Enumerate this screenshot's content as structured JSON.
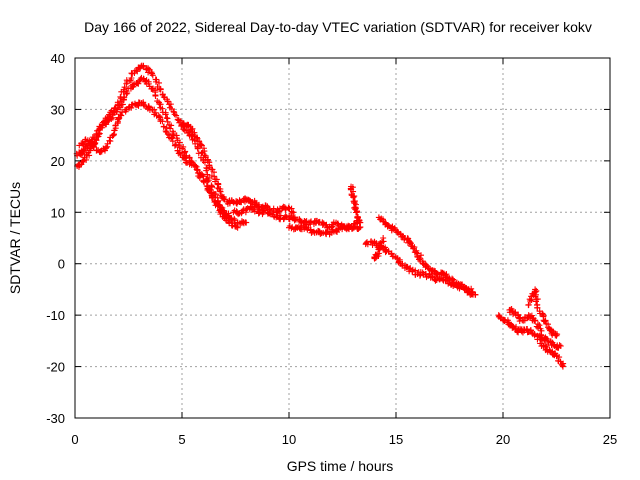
{
  "chart_data": {
    "type": "scatter",
    "title": "Day 166 of 2022, Sidereal Day-to-day VTEC variation (SDTVAR) for receiver kokv",
    "xlabel": "GPS time / hours",
    "ylabel": "SDTVAR / TECUs",
    "xlim": [
      0,
      25
    ],
    "ylim": [
      -30,
      40
    ],
    "xticks": [
      0,
      5,
      10,
      15,
      20,
      25
    ],
    "yticks": [
      -30,
      -20,
      -10,
      0,
      10,
      20,
      30,
      40
    ],
    "grid": true,
    "marker": "+",
    "color": "#ff0000",
    "series": [
      {
        "name": "track-a",
        "x": [
          0.1,
          0.4,
          0.7,
          1.0,
          1.3,
          1.6,
          2.0,
          2.4,
          2.8,
          3.2,
          3.6,
          4.0,
          4.4,
          4.8,
          5.2,
          5.6,
          6.0,
          6.4,
          6.8,
          7.2,
          7.6,
          8.0
        ],
        "y": [
          19,
          20,
          22,
          24,
          27,
          29,
          31,
          35,
          37.5,
          38.5,
          37,
          34,
          31,
          28,
          26,
          24,
          20,
          15,
          11,
          9,
          8,
          8
        ]
      },
      {
        "name": "track-b",
        "x": [
          0.1,
          0.4,
          0.7,
          1.0,
          1.3,
          1.6,
          2.0,
          2.4,
          2.8,
          3.2,
          3.6,
          4.0,
          4.4,
          4.8,
          5.2,
          5.6,
          6.0,
          6.4,
          6.8,
          7.2,
          7.6
        ],
        "y": [
          21,
          22,
          23,
          25,
          27,
          28,
          30,
          33,
          35,
          36,
          34,
          31,
          27,
          24,
          21,
          19,
          17,
          13,
          10,
          8,
          7
        ]
      },
      {
        "name": "track-c",
        "x": [
          0.2,
          0.6,
          1.0,
          1.4,
          1.8,
          2.0,
          2.4,
          2.8,
          3.2,
          3.6,
          4.0,
          4.4,
          4.8,
          5.2,
          5.6,
          6.0,
          6.4,
          6.8,
          7.2
        ],
        "y": [
          23,
          24,
          22,
          22,
          25,
          28,
          30,
          31,
          31,
          30,
          28,
          25,
          22,
          20,
          19,
          16,
          13,
          11,
          9
        ]
      },
      {
        "name": "track-d",
        "x": [
          5.0,
          5.3,
          5.6,
          5.9,
          6.2,
          6.5,
          6.8,
          7.1,
          7.4,
          7.7,
          8.0,
          8.3,
          8.6,
          9.0,
          9.4,
          9.8,
          10.2
        ],
        "y": [
          27,
          27,
          25,
          23,
          20,
          17,
          14,
          12,
          12,
          12,
          12.5,
          12,
          11,
          11,
          10,
          11,
          10
        ]
      },
      {
        "name": "track-e",
        "x": [
          7.4,
          7.8,
          8.2,
          8.6,
          9.0,
          9.4,
          9.8,
          10.2,
          10.6,
          11.0,
          11.4,
          11.8,
          12.2,
          12.6,
          13.0,
          13.3
        ],
        "y": [
          10,
          10,
          11,
          10,
          10,
          9,
          9,
          9,
          8,
          8,
          8,
          7,
          8,
          7,
          7,
          7
        ]
      },
      {
        "name": "track-f",
        "x": [
          10.0,
          10.4,
          10.8,
          11.2,
          11.6,
          12.0,
          12.4,
          12.8,
          13.2
        ],
        "y": [
          7,
          7,
          7,
          6,
          6,
          6,
          7,
          7,
          8
        ]
      },
      {
        "name": "track-g",
        "x": [
          12.9,
          13.0,
          13.1,
          13.2,
          13.3
        ],
        "y": [
          15,
          13,
          11,
          9,
          8
        ]
      },
      {
        "name": "track-h",
        "x": [
          13.6,
          14.0,
          14.4,
          14.8,
          15.2,
          15.6,
          16.0,
          16.4,
          16.8,
          17.2,
          17.6,
          18.0,
          18.4,
          18.7
        ],
        "y": [
          4,
          4,
          3,
          2,
          0,
          -1,
          -2,
          -2,
          -3,
          -3,
          -4,
          -4,
          -5,
          -6
        ]
      },
      {
        "name": "track-i",
        "x": [
          14.2,
          14.5,
          14.8,
          15.1,
          15.4,
          15.7,
          16.0,
          16.3,
          16.6,
          16.9,
          17.2,
          17.5,
          17.8,
          18.2,
          18.6
        ],
        "y": [
          9,
          8,
          7,
          6,
          5,
          4,
          2,
          0,
          -1,
          -2,
          -2,
          -3,
          -4,
          -5,
          -6
        ]
      },
      {
        "name": "track-j",
        "x": [
          14.0,
          14.2,
          14.4
        ],
        "y": [
          1,
          2,
          5
        ]
      },
      {
        "name": "track-k",
        "x": [
          19.8,
          20.1,
          20.4,
          20.7,
          21.0,
          21.3,
          21.6,
          21.9,
          22.2,
          22.5,
          22.8
        ],
        "y": [
          -10,
          -11,
          -12,
          -13,
          -13,
          -13,
          -14,
          -16,
          -17,
          -18,
          -20
        ]
      },
      {
        "name": "track-l",
        "x": [
          20.3,
          20.6,
          20.9,
          21.2,
          21.5,
          21.8,
          22.1,
          22.4,
          22.7
        ],
        "y": [
          -9,
          -10,
          -11,
          -10,
          -11,
          -14,
          -15,
          -16,
          -16
        ]
      },
      {
        "name": "track-m",
        "x": [
          21.2,
          21.5,
          21.6,
          21.9,
          22.2,
          22.5
        ],
        "y": [
          -8,
          -5,
          -8,
          -11,
          -13,
          -14
        ]
      }
    ]
  }
}
